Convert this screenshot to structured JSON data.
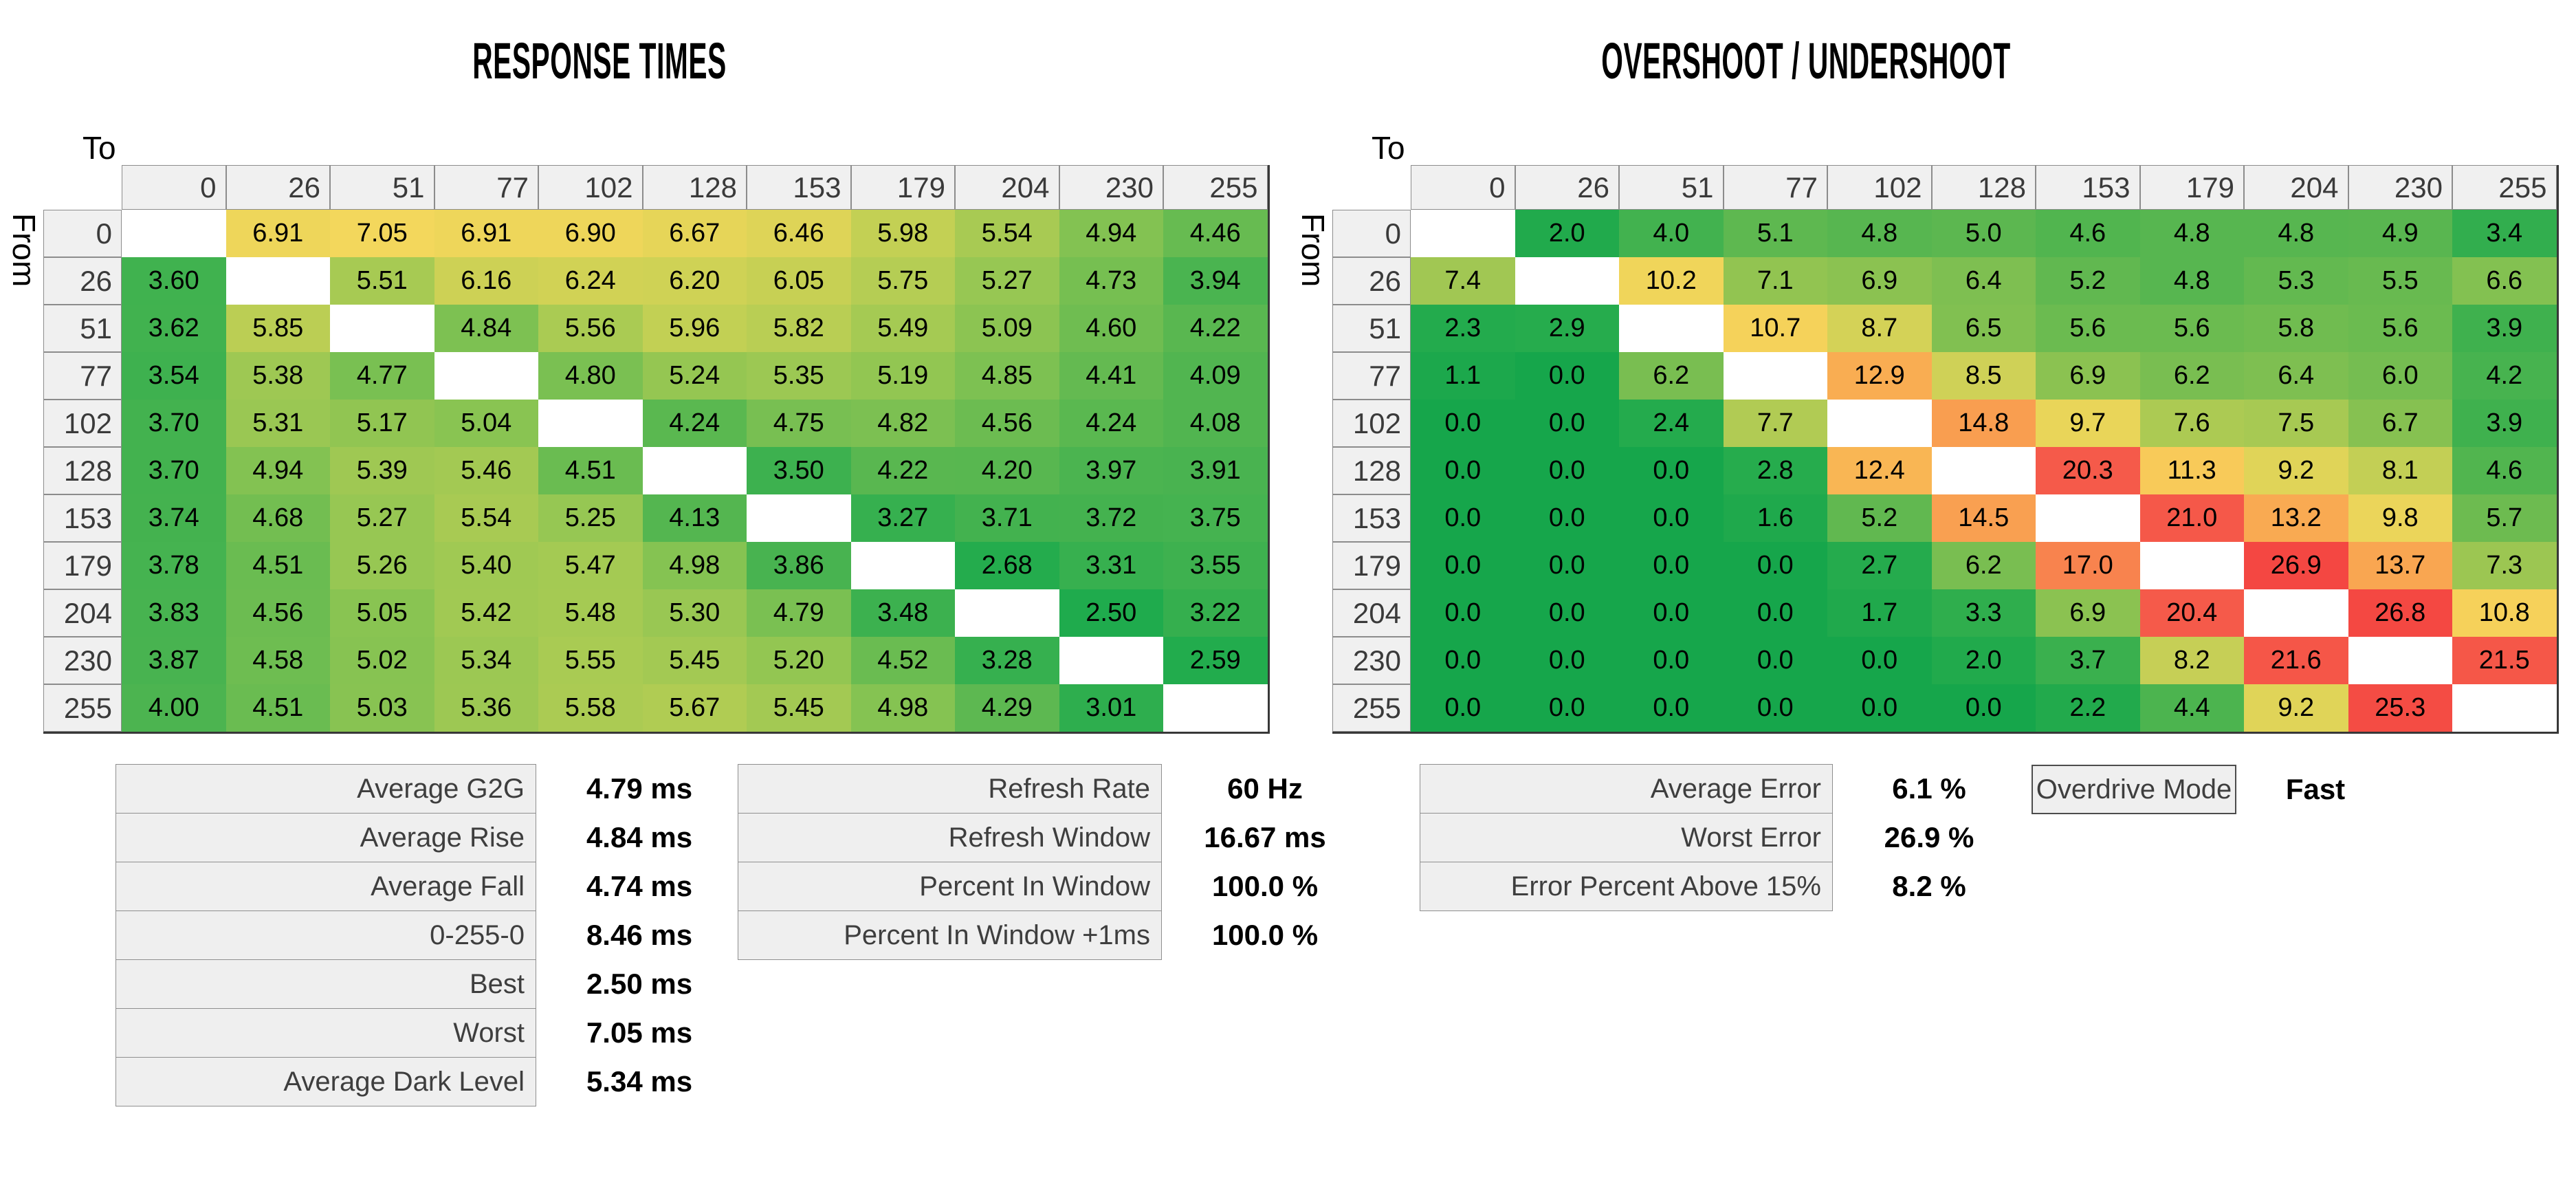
{
  "labels": {
    "to": "To",
    "from": "From"
  },
  "chart_data": [
    {
      "type": "heatmap",
      "id": "response_times",
      "title": "RESPONSE TIMES",
      "unit": "ms",
      "xlabel": "To",
      "ylabel": "From",
      "decimals": 2,
      "categories": [
        0,
        26,
        51,
        77,
        102,
        128,
        153,
        179,
        204,
        230,
        255
      ],
      "values": [
        [
          null,
          6.91,
          7.05,
          6.91,
          6.9,
          6.67,
          6.46,
          5.98,
          5.54,
          4.94,
          4.46
        ],
        [
          3.6,
          null,
          5.51,
          6.16,
          6.24,
          6.2,
          6.05,
          5.75,
          5.27,
          4.73,
          3.94
        ],
        [
          3.62,
          5.85,
          null,
          4.84,
          5.56,
          5.96,
          5.82,
          5.49,
          5.09,
          4.6,
          4.22
        ],
        [
          3.54,
          5.38,
          4.77,
          null,
          4.8,
          5.24,
          5.35,
          5.19,
          4.85,
          4.41,
          4.09
        ],
        [
          3.7,
          5.31,
          5.17,
          5.04,
          null,
          4.24,
          4.75,
          4.82,
          4.56,
          4.24,
          4.08
        ],
        [
          3.7,
          4.94,
          5.39,
          5.46,
          4.51,
          null,
          3.5,
          4.22,
          4.2,
          3.97,
          3.91
        ],
        [
          3.74,
          4.68,
          5.27,
          5.54,
          5.25,
          4.13,
          null,
          3.27,
          3.71,
          3.72,
          3.75
        ],
        [
          3.78,
          4.51,
          5.26,
          5.4,
          5.47,
          4.98,
          3.86,
          null,
          2.68,
          3.31,
          3.55
        ],
        [
          3.83,
          4.56,
          5.05,
          5.42,
          5.48,
          5.3,
          4.79,
          3.48,
          null,
          2.5,
          3.22
        ],
        [
          3.87,
          4.58,
          5.02,
          5.34,
          5.55,
          5.45,
          5.2,
          4.52,
          3.28,
          null,
          2.59
        ],
        [
          4.0,
          4.51,
          5.03,
          5.36,
          5.58,
          5.67,
          5.45,
          4.98,
          4.29,
          3.01,
          null
        ]
      ],
      "color_scale": [
        [
          2.5,
          "#1fab4d"
        ],
        [
          4.0,
          "#4cb450"
        ],
        [
          5.0,
          "#86c352"
        ],
        [
          5.5,
          "#a6ca53"
        ],
        [
          6.0,
          "#c4d054"
        ],
        [
          6.5,
          "#e0d457"
        ],
        [
          7.1,
          "#f5d75c"
        ]
      ]
    },
    {
      "type": "heatmap",
      "id": "overshoot_undershoot",
      "title": "OVERSHOOT / UNDERSHOOT",
      "unit": "%",
      "xlabel": "To",
      "ylabel": "From",
      "decimals": 1,
      "categories": [
        0,
        26,
        51,
        77,
        102,
        128,
        153,
        179,
        204,
        230,
        255
      ],
      "values": [
        [
          null,
          2.0,
          4.0,
          5.1,
          4.8,
          5.0,
          4.6,
          4.8,
          4.8,
          4.9,
          3.4
        ],
        [
          7.4,
          null,
          10.2,
          7.1,
          6.9,
          6.4,
          5.2,
          4.8,
          5.3,
          5.5,
          6.6
        ],
        [
          2.3,
          2.9,
          null,
          10.7,
          8.7,
          6.5,
          5.6,
          5.6,
          5.8,
          5.6,
          3.9
        ],
        [
          1.1,
          0.0,
          6.2,
          null,
          12.9,
          8.5,
          6.9,
          6.2,
          6.4,
          6.0,
          4.2
        ],
        [
          0.0,
          0.0,
          2.4,
          7.7,
          null,
          14.8,
          9.7,
          7.6,
          7.5,
          6.7,
          3.9
        ],
        [
          0.0,
          0.0,
          0.0,
          2.8,
          12.4,
          null,
          20.3,
          11.3,
          9.2,
          8.1,
          4.6
        ],
        [
          0.0,
          0.0,
          0.0,
          1.6,
          5.2,
          14.5,
          null,
          21.0,
          13.2,
          9.8,
          5.7
        ],
        [
          0.0,
          0.0,
          0.0,
          0.0,
          2.7,
          6.2,
          17.0,
          null,
          26.9,
          13.7,
          7.3
        ],
        [
          0.0,
          0.0,
          0.0,
          0.0,
          1.7,
          3.3,
          6.9,
          20.4,
          null,
          26.8,
          10.8
        ],
        [
          0.0,
          0.0,
          0.0,
          0.0,
          0.0,
          2.0,
          3.7,
          8.2,
          21.6,
          null,
          21.5
        ],
        [
          0.0,
          0.0,
          0.0,
          0.0,
          0.0,
          0.0,
          2.2,
          4.4,
          9.2,
          25.3,
          null
        ]
      ],
      "color_scale": [
        [
          0,
          "#16a64b"
        ],
        [
          3,
          "#27ac4d"
        ],
        [
          5,
          "#5cb750"
        ],
        [
          7,
          "#8dc351"
        ],
        [
          8,
          "#c0ce55"
        ],
        [
          9,
          "#ddd358"
        ],
        [
          10,
          "#eed65a"
        ],
        [
          11,
          "#f8d05a"
        ],
        [
          13,
          "#f9ab52"
        ],
        [
          15,
          "#f99c50"
        ],
        [
          17,
          "#f8834e"
        ],
        [
          20,
          "#f55b4a"
        ],
        [
          27,
          "#f44742"
        ]
      ]
    }
  ],
  "summaries": {
    "response_stats": {
      "rows": [
        {
          "label": "Average G2G",
          "value": "4.79 ms"
        },
        {
          "label": "Average Rise",
          "value": "4.84 ms"
        },
        {
          "label": "Average Fall",
          "value": "4.74 ms"
        },
        {
          "label": "0-255-0",
          "value": "8.46 ms"
        },
        {
          "label": "Best",
          "value": "2.50 ms"
        },
        {
          "label": "Worst",
          "value": "7.05 ms"
        },
        {
          "label": "Average Dark Level",
          "value": "5.34 ms"
        }
      ]
    },
    "refresh_stats": {
      "rows": [
        {
          "label": "Refresh Rate",
          "value": "60 Hz"
        },
        {
          "label": "Refresh Window",
          "value": "16.67 ms"
        },
        {
          "label": "Percent In Window",
          "value": "100.0 %"
        },
        {
          "label": "Percent In Window +1ms",
          "value": "100.0 %"
        }
      ]
    },
    "error_stats": {
      "rows": [
        {
          "label": "Average Error",
          "value": "6.1 %"
        },
        {
          "label": "Worst Error",
          "value": "26.9 %"
        },
        {
          "label": "Error Percent Above 15%",
          "value": "8.2 %"
        }
      ]
    },
    "overdrive": {
      "label": "Overdrive Mode",
      "value": "Fast"
    }
  },
  "style": {
    "header_bg": "#f0f0f0",
    "header_border": "#8c8c8c",
    "header_text": "#3a3a3a",
    "summary_label_bg": "#efefef",
    "summary_label_border": "#8f8f8f",
    "summary_label_text": "#3e3e3e",
    "diagonal_cell": "#ffffff"
  }
}
